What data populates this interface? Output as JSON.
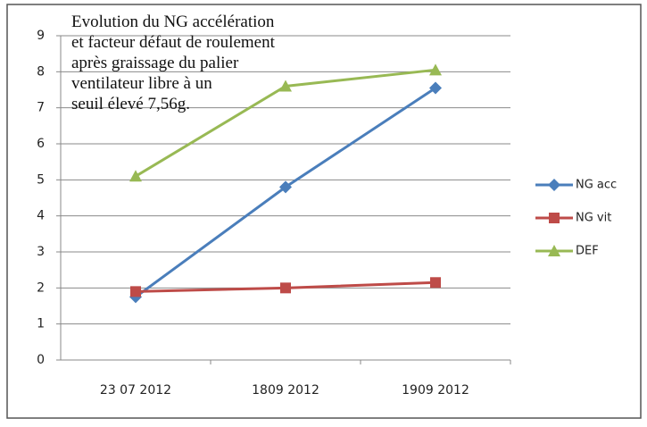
{
  "chart_data": {
    "type": "line",
    "title": [
      "Evolution du NG accélération",
      "et facteur défaut de roulement",
      "après graissage du palier",
      "ventilateur libre à un",
      "seuil élevé 7,56g."
    ],
    "categories": [
      "23 07 2012",
      "1809 2012",
      "1909 2012"
    ],
    "series": [
      {
        "name": "NG acc",
        "color": "#4a7ebb",
        "marker": "diamond",
        "values": [
          1.75,
          4.8,
          7.55
        ]
      },
      {
        "name": "NG vit",
        "color": "#be4b48",
        "marker": "square",
        "values": [
          1.9,
          2.0,
          2.15
        ]
      },
      {
        "name": "DEF",
        "color": "#98b954",
        "marker": "triangle",
        "values": [
          5.1,
          7.6,
          8.05
        ]
      }
    ],
    "ylim": [
      0,
      9
    ],
    "yticks": [
      0,
      1,
      2,
      3,
      4,
      5,
      6,
      7,
      8,
      9
    ],
    "grid": true,
    "legend": "right"
  }
}
